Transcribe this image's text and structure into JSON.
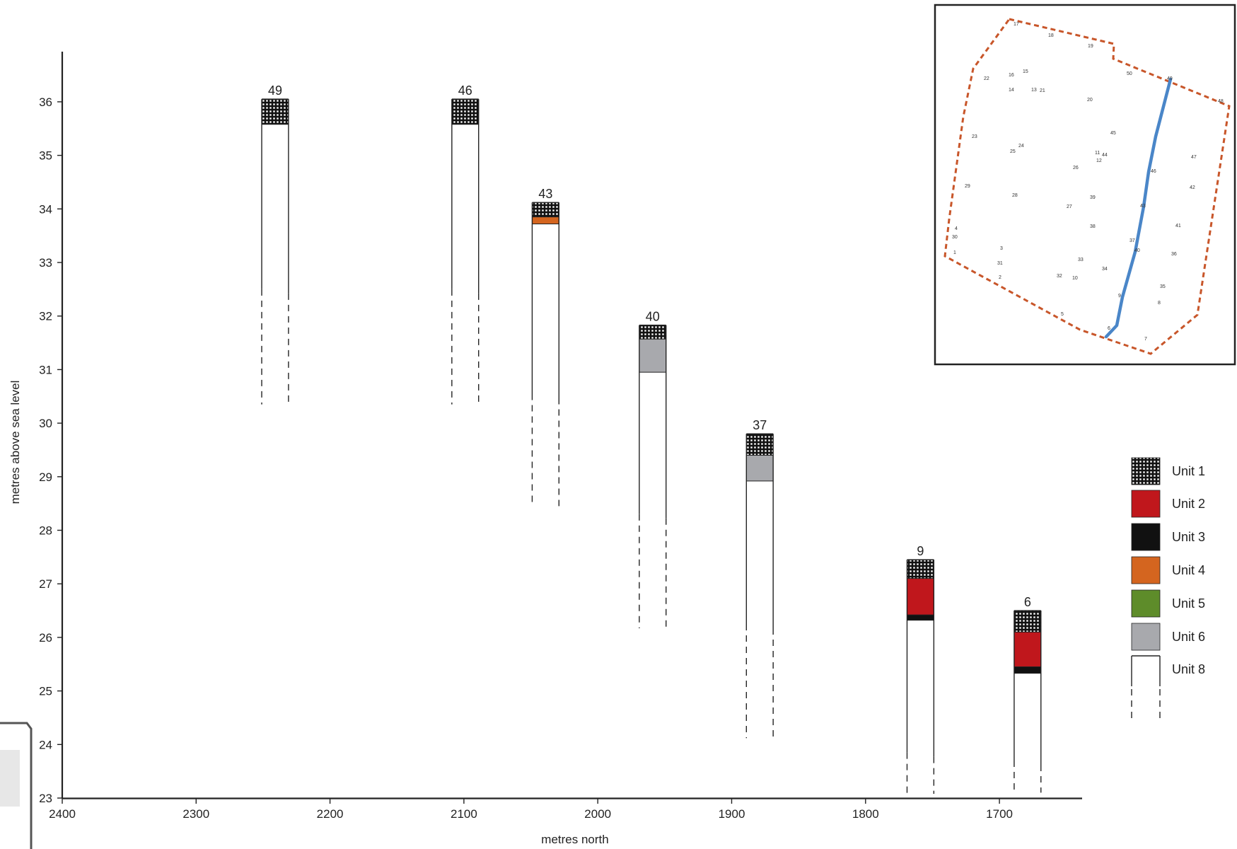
{
  "chart_data": {
    "type": "stratigraphic-column",
    "xlabel": "metres north",
    "ylabel": "metres above sea level",
    "xlim": [
      2400,
      1640
    ],
    "ylim": [
      23,
      37
    ],
    "x_ticks": [
      2400,
      2300,
      2200,
      2100,
      2000,
      1900,
      1800,
      1700
    ],
    "y_ticks": [
      23,
      24,
      25,
      26,
      27,
      28,
      29,
      30,
      31,
      32,
      33,
      34,
      35,
      36
    ],
    "core_width": 20,
    "legend_position": "right",
    "units": [
      {
        "key": "u1",
        "name": "Unit 1",
        "color": "#ffffff",
        "pattern": "grid-black"
      },
      {
        "key": "u2",
        "name": "Unit 2",
        "color": "#c0171c"
      },
      {
        "key": "u3",
        "name": "Unit 3",
        "color": "#111111"
      },
      {
        "key": "u4",
        "name": "Unit 4",
        "color": "#d4651f"
      },
      {
        "key": "u5",
        "name": "Unit 5",
        "color": "#5e8c2a"
      },
      {
        "key": "u6",
        "name": "Unit 6",
        "color": "#a8a9ad"
      },
      {
        "key": "u8",
        "name": "Unit 8",
        "color": "#ffffff"
      }
    ],
    "cores": [
      {
        "id": "49",
        "x": 2241,
        "top": 36.05,
        "solid_bottom": 32.5,
        "dash_bottom": 30.35,
        "layers": [
          {
            "unit": "u1",
            "top": 36.05,
            "bottom": 35.58
          },
          {
            "unit": "u8",
            "top": 35.58,
            "bottom": 32.5
          }
        ]
      },
      {
        "id": "46",
        "x": 2099,
        "top": 36.05,
        "solid_bottom": 32.5,
        "dash_bottom": 30.35,
        "layers": [
          {
            "unit": "u1",
            "top": 36.05,
            "bottom": 35.58
          },
          {
            "unit": "u8",
            "top": 35.58,
            "bottom": 32.5
          }
        ]
      },
      {
        "id": "43",
        "x": 2039,
        "top": 34.12,
        "solid_bottom": 30.55,
        "dash_bottom": 28.45,
        "layers": [
          {
            "unit": "u1",
            "top": 34.12,
            "bottom": 33.85
          },
          {
            "unit": "u4",
            "top": 33.85,
            "bottom": 33.72
          },
          {
            "unit": "u8",
            "top": 33.72,
            "bottom": 30.55
          }
        ]
      },
      {
        "id": "40",
        "x": 1959,
        "top": 31.83,
        "solid_bottom": 28.3,
        "dash_bottom": 26.17,
        "layers": [
          {
            "unit": "u1",
            "top": 31.83,
            "bottom": 31.57
          },
          {
            "unit": "u6",
            "top": 31.57,
            "bottom": 30.95
          },
          {
            "unit": "u8",
            "top": 30.95,
            "bottom": 28.3
          }
        ]
      },
      {
        "id": "37",
        "x": 1879,
        "top": 29.8,
        "solid_bottom": 26.25,
        "dash_bottom": 24.12,
        "layers": [
          {
            "unit": "u1",
            "top": 29.8,
            "bottom": 29.4
          },
          {
            "unit": "u6",
            "top": 29.4,
            "bottom": 28.92
          },
          {
            "unit": "u8",
            "top": 28.92,
            "bottom": 26.25
          }
        ]
      },
      {
        "id": "9",
        "x": 1759,
        "top": 27.45,
        "solid_bottom": 23.85,
        "dash_bottom": 23.08,
        "layers": [
          {
            "unit": "u1",
            "top": 27.45,
            "bottom": 27.1
          },
          {
            "unit": "u2",
            "top": 27.1,
            "bottom": 26.42
          },
          {
            "unit": "u3",
            "top": 26.42,
            "bottom": 26.32
          },
          {
            "unit": "u8",
            "top": 26.32,
            "bottom": 23.85
          }
        ]
      },
      {
        "id": "6",
        "x": 1679,
        "top": 26.5,
        "solid_bottom": 23.7,
        "dash_bottom": 23.1,
        "layers": [
          {
            "unit": "u1",
            "top": 26.5,
            "bottom": 26.1
          },
          {
            "unit": "u2",
            "top": 26.1,
            "bottom": 25.45
          },
          {
            "unit": "u3",
            "top": 25.45,
            "bottom": 25.33
          },
          {
            "unit": "u8",
            "top": 25.33,
            "bottom": 23.7
          }
        ]
      }
    ],
    "inset_map": {
      "boundary_color": "#c8562a",
      "transect_color": "#4a86c8",
      "point_labels": [
        "17",
        "18",
        "19",
        "50",
        "22",
        "16",
        "15",
        "14",
        "13",
        "21",
        "20",
        "48",
        "23",
        "25",
        "24",
        "11",
        "44",
        "12",
        "45",
        "26",
        "47",
        "29",
        "28",
        "27",
        "39",
        "42",
        "4",
        "30",
        "38",
        "41",
        "3",
        "37",
        "1",
        "31",
        "33",
        "34",
        "36",
        "32",
        "10",
        "2",
        "35",
        "5",
        "7",
        "8",
        "6",
        "9",
        "40",
        "43",
        "46",
        "49"
      ]
    }
  }
}
